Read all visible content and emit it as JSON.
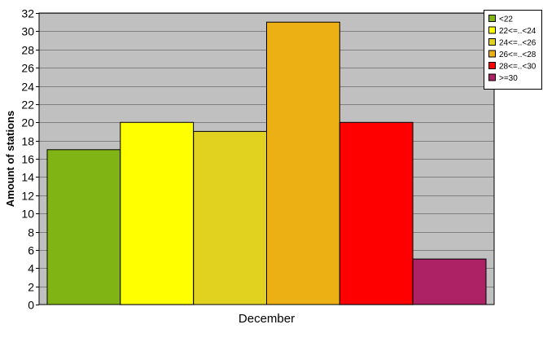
{
  "chart_data": {
    "type": "bar",
    "categories": [
      "December"
    ],
    "series": [
      {
        "name": "<22",
        "values": [
          17
        ],
        "color": "#80b414"
      },
      {
        "name": "22<=..<24",
        "values": [
          20
        ],
        "color": "#ffff00"
      },
      {
        "name": "24<=..<26",
        "values": [
          19
        ],
        "color": "#e0d21e"
      },
      {
        "name": "26<=..<28",
        "values": [
          31
        ],
        "color": "#ecb014"
      },
      {
        "name": "28<=..<30",
        "values": [
          20
        ],
        "color": "#ff0000"
      },
      {
        "name": ">=30",
        "values": [
          5
        ],
        "color": "#ac2264"
      }
    ],
    "title": "",
    "xlabel": "",
    "ylabel": "Amount of stations",
    "ylim": [
      0,
      32
    ],
    "ytick_step": 2,
    "grid": true,
    "legend_position": "top-right",
    "plot_background": "#c0c0c0"
  }
}
